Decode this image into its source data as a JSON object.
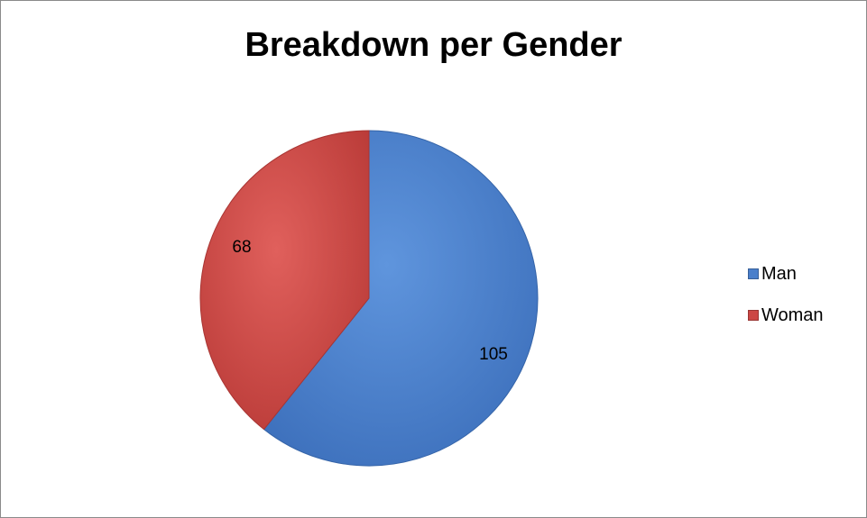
{
  "chart_data": {
    "type": "pie",
    "title": "Breakdown per Gender",
    "categories": [
      "Man",
      "Woman"
    ],
    "values": [
      105,
      68
    ],
    "colors": [
      "#4a7fcb",
      "#cc4744"
    ],
    "legend_position": "right",
    "data_labels": true
  }
}
